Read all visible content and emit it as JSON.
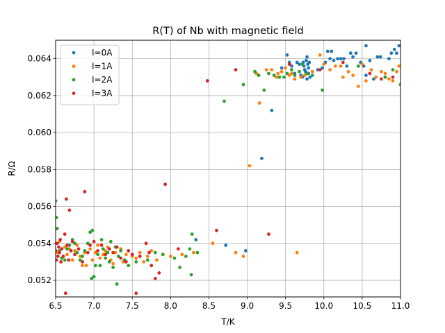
{
  "chart_data": {
    "type": "scatter",
    "title": "R(T) of Nb with magnetic field",
    "xlabel": "T/K",
    "ylabel": "R/Ω",
    "xlim": [
      6.5,
      11.0
    ],
    "ylim": [
      0.0511,
      0.065
    ],
    "xticks": [
      6.5,
      7.0,
      7.5,
      8.0,
      8.5,
      9.0,
      9.5,
      10.0,
      10.5,
      11.0
    ],
    "xtick_labels": [
      "6.5",
      "7.0",
      "7.5",
      "8.0",
      "8.5",
      "9.0",
      "9.5",
      "10.0",
      "10.5",
      "11.0"
    ],
    "yticks": [
      0.052,
      0.054,
      0.056,
      0.058,
      0.06,
      0.062,
      0.064
    ],
    "ytick_labels": [
      "0.052",
      "0.054",
      "0.056",
      "0.058",
      "0.060",
      "0.062",
      "0.064"
    ],
    "grid": true,
    "legend": "top-left",
    "series": [
      {
        "name": "I=0A",
        "color": "#1f77b4",
        "points": [
          [
            8.33,
            0.0542
          ],
          [
            8.72,
            0.0539
          ],
          [
            8.98,
            0.0536
          ],
          [
            9.19,
            0.0586
          ],
          [
            9.32,
            0.0612
          ],
          [
            9.45,
            0.0635
          ],
          [
            9.52,
            0.0642
          ],
          [
            9.55,
            0.0638
          ],
          [
            9.58,
            0.0636
          ],
          [
            9.62,
            0.0632
          ],
          [
            9.65,
            0.0638
          ],
          [
            9.68,
            0.0637
          ],
          [
            9.7,
            0.0631
          ],
          [
            9.72,
            0.063
          ],
          [
            9.73,
            0.0638
          ],
          [
            9.74,
            0.0636
          ],
          [
            9.75,
            0.0634
          ],
          [
            9.76,
            0.0633
          ],
          [
            9.77,
            0.0639
          ],
          [
            9.78,
            0.0629
          ],
          [
            9.78,
            0.0641
          ],
          [
            9.79,
            0.0637
          ],
          [
            9.8,
            0.0635
          ],
          [
            9.8,
            0.0632
          ],
          [
            9.81,
            0.0638
          ],
          [
            9.82,
            0.063
          ],
          [
            9.85,
            0.0633
          ],
          [
            9.92,
            0.0634
          ],
          [
            9.98,
            0.0635
          ],
          [
            10.02,
            0.0638
          ],
          [
            10.05,
            0.0644
          ],
          [
            10.08,
            0.064
          ],
          [
            10.1,
            0.0644
          ],
          [
            10.13,
            0.0639
          ],
          [
            10.18,
            0.064
          ],
          [
            10.22,
            0.064
          ],
          [
            10.26,
            0.064
          ],
          [
            10.3,
            0.0636
          ],
          [
            10.35,
            0.0643
          ],
          [
            10.38,
            0.0641
          ],
          [
            10.42,
            0.0643
          ],
          [
            10.48,
            0.0638
          ],
          [
            10.52,
            0.0636
          ],
          [
            10.55,
            0.0647
          ],
          [
            10.55,
            0.0631
          ],
          [
            10.6,
            0.0639
          ],
          [
            10.65,
            0.0629
          ],
          [
            10.7,
            0.0641
          ],
          [
            10.74,
            0.0641
          ],
          [
            10.8,
            0.063
          ],
          [
            10.85,
            0.064
          ],
          [
            10.88,
            0.0643
          ],
          [
            10.92,
            0.0645
          ],
          [
            10.95,
            0.0643
          ],
          [
            10.98,
            0.0647
          ]
        ]
      },
      {
        "name": "I=1A",
        "color": "#ff7f0e",
        "points": [
          [
            6.52,
            0.0535
          ],
          [
            6.55,
            0.0541
          ],
          [
            6.58,
            0.0532
          ],
          [
            6.62,
            0.0538
          ],
          [
            6.65,
            0.0534
          ],
          [
            6.68,
            0.0537
          ],
          [
            6.72,
            0.0531
          ],
          [
            6.75,
            0.0536
          ],
          [
            6.78,
            0.0539
          ],
          [
            6.82,
            0.0533
          ],
          [
            6.85,
            0.0528
          ],
          [
            6.88,
            0.0535
          ],
          [
            6.9,
            0.0528
          ],
          [
            6.95,
            0.0537
          ],
          [
            6.98,
            0.0531
          ],
          [
            7.02,
            0.0535
          ],
          [
            7.05,
            0.0539
          ],
          [
            7.08,
            0.0532
          ],
          [
            7.12,
            0.0534
          ],
          [
            7.15,
            0.0536
          ],
          [
            7.18,
            0.0538
          ],
          [
            7.22,
            0.0531
          ],
          [
            7.25,
            0.0529
          ],
          [
            7.28,
            0.0535
          ],
          [
            7.32,
            0.0533
          ],
          [
            7.35,
            0.0537
          ],
          [
            7.38,
            0.053
          ],
          [
            7.42,
            0.0534
          ],
          [
            7.45,
            0.0536
          ],
          [
            7.5,
            0.0533
          ],
          [
            7.55,
            0.0532
          ],
          [
            7.6,
            0.0535
          ],
          [
            7.65,
            0.053
          ],
          [
            7.7,
            0.0533
          ],
          [
            7.75,
            0.0536
          ],
          [
            7.82,
            0.0531
          ],
          [
            7.9,
            0.0534
          ],
          [
            8.0,
            0.0533
          ],
          [
            8.15,
            0.0534
          ],
          [
            8.3,
            0.0535
          ],
          [
            8.55,
            0.054
          ],
          [
            8.85,
            0.0535
          ],
          [
            8.95,
            0.0533
          ],
          [
            9.03,
            0.0582
          ],
          [
            9.12,
            0.0632
          ],
          [
            9.16,
            0.0616
          ],
          [
            9.25,
            0.0634
          ],
          [
            9.32,
            0.0634
          ],
          [
            9.38,
            0.063
          ],
          [
            9.4,
            0.0632
          ],
          [
            9.45,
            0.0633
          ],
          [
            9.5,
            0.0635
          ],
          [
            9.55,
            0.0631
          ],
          [
            9.58,
            0.0632
          ],
          [
            9.62,
            0.0629
          ],
          [
            9.65,
            0.0535
          ],
          [
            9.7,
            0.063
          ],
          [
            9.75,
            0.0631
          ],
          [
            9.85,
            0.0633
          ],
          [
            9.95,
            0.0642
          ],
          [
            10.0,
            0.0637
          ],
          [
            10.08,
            0.0634
          ],
          [
            10.15,
            0.0636
          ],
          [
            10.22,
            0.0636
          ],
          [
            10.25,
            0.063
          ],
          [
            10.32,
            0.0633
          ],
          [
            10.38,
            0.0631
          ],
          [
            10.45,
            0.0625
          ],
          [
            10.5,
            0.0637
          ],
          [
            10.55,
            0.0628
          ],
          [
            10.62,
            0.0634
          ],
          [
            10.68,
            0.063
          ],
          [
            10.75,
            0.0633
          ],
          [
            10.8,
            0.0632
          ],
          [
            10.85,
            0.0629
          ],
          [
            10.9,
            0.0628
          ],
          [
            10.95,
            0.0633
          ],
          [
            10.98,
            0.0636
          ]
        ]
      },
      {
        "name": "I=2A",
        "color": "#2ca02c",
        "points": [
          [
            6.5,
            0.0563
          ],
          [
            6.51,
            0.0554
          ],
          [
            6.52,
            0.0548
          ],
          [
            6.55,
            0.0536
          ],
          [
            6.58,
            0.0532
          ],
          [
            6.62,
            0.0531
          ],
          [
            6.65,
            0.0537
          ],
          [
            6.68,
            0.0539
          ],
          [
            6.72,
            0.0542
          ],
          [
            6.75,
            0.054
          ],
          [
            6.78,
            0.0535
          ],
          [
            6.82,
            0.0531
          ],
          [
            6.85,
            0.0533
          ],
          [
            6.88,
            0.0536
          ],
          [
            6.92,
            0.054
          ],
          [
            6.95,
            0.0546
          ],
          [
            6.97,
            0.0521
          ],
          [
            6.98,
            0.0547
          ],
          [
            7.0,
            0.0522
          ],
          [
            7.02,
            0.0528
          ],
          [
            7.03,
            0.051
          ],
          [
            7.05,
            0.0534
          ],
          [
            7.08,
            0.0528
          ],
          [
            7.1,
            0.0542
          ],
          [
            7.12,
            0.0537
          ],
          [
            7.15,
            0.0532
          ],
          [
            7.18,
            0.0535
          ],
          [
            7.2,
            0.053
          ],
          [
            7.22,
            0.0541
          ],
          [
            7.25,
            0.0527
          ],
          [
            7.28,
            0.0538
          ],
          [
            7.3,
            0.0518
          ],
          [
            7.32,
            0.0533
          ],
          [
            7.35,
            0.0536
          ],
          [
            7.4,
            0.0531
          ],
          [
            7.45,
            0.0528
          ],
          [
            7.5,
            0.0534
          ],
          [
            7.55,
            0.053
          ],
          [
            7.6,
            0.0533
          ],
          [
            7.7,
            0.0531
          ],
          [
            7.8,
            0.0535
          ],
          [
            7.9,
            0.0534
          ],
          [
            8.05,
            0.0532
          ],
          [
            8.12,
            0.0527
          ],
          [
            8.2,
            0.0533
          ],
          [
            8.25,
            0.0537
          ],
          [
            8.27,
            0.0523
          ],
          [
            8.28,
            0.0545
          ],
          [
            8.35,
            0.0535
          ],
          [
            8.7,
            0.0617
          ],
          [
            8.95,
            0.0626
          ],
          [
            9.1,
            0.0633
          ],
          [
            9.15,
            0.0631
          ],
          [
            9.22,
            0.0623
          ],
          [
            9.28,
            0.0632
          ],
          [
            9.35,
            0.0631
          ],
          [
            9.42,
            0.063
          ],
          [
            9.48,
            0.063
          ],
          [
            9.52,
            0.0632
          ],
          [
            9.58,
            0.0634
          ],
          [
            9.62,
            0.0631
          ],
          [
            9.68,
            0.0633
          ],
          [
            9.72,
            0.0637
          ],
          [
            9.78,
            0.0632
          ],
          [
            9.85,
            0.0631
          ],
          [
            9.98,
            0.0623
          ],
          [
            10.45,
            0.0636
          ],
          [
            10.8,
            0.063
          ],
          [
            10.9,
            0.0634
          ],
          [
            11.0,
            0.0626
          ]
        ]
      },
      {
        "name": "I=3A",
        "color": "#d62728",
        "points": [
          [
            6.5,
            0.0536
          ],
          [
            6.51,
            0.0531
          ],
          [
            6.52,
            0.054
          ],
          [
            6.53,
            0.0533
          ],
          [
            6.54,
            0.0538
          ],
          [
            6.55,
            0.0535
          ],
          [
            6.56,
            0.0542
          ],
          [
            6.57,
            0.053
          ],
          [
            6.58,
            0.0537
          ],
          [
            6.6,
            0.0533
          ],
          [
            6.62,
            0.0545
          ],
          [
            6.63,
            0.0513
          ],
          [
            6.64,
            0.0564
          ],
          [
            6.65,
            0.0539
          ],
          [
            6.67,
            0.0531
          ],
          [
            6.68,
            0.0558
          ],
          [
            6.7,
            0.0536
          ],
          [
            6.72,
            0.0541
          ],
          [
            6.75,
            0.0534
          ],
          [
            6.8,
            0.0537
          ],
          [
            6.85,
            0.053
          ],
          [
            6.88,
            0.0568
          ],
          [
            6.92,
            0.0535
          ],
          [
            6.95,
            0.0539
          ],
          [
            7.0,
            0.0541
          ],
          [
            7.05,
            0.0536
          ],
          [
            7.1,
            0.0539
          ],
          [
            7.15,
            0.0534
          ],
          [
            7.2,
            0.0537
          ],
          [
            7.25,
            0.0535
          ],
          [
            7.3,
            0.0538
          ],
          [
            7.35,
            0.0532
          ],
          [
            7.42,
            0.053
          ],
          [
            7.45,
            0.0536
          ],
          [
            7.5,
            0.0534
          ],
          [
            7.55,
            0.0513
          ],
          [
            7.6,
            0.0533
          ],
          [
            7.68,
            0.054
          ],
          [
            7.72,
            0.0535
          ],
          [
            7.75,
            0.0528
          ],
          [
            7.8,
            0.0521
          ],
          [
            7.85,
            0.0524
          ],
          [
            7.93,
            0.0572
          ],
          [
            8.1,
            0.0537
          ],
          [
            8.48,
            0.0628
          ],
          [
            8.6,
            0.0547
          ],
          [
            8.85,
            0.0634
          ],
          [
            9.28,
            0.0545
          ],
          [
            9.55,
            0.0637
          ],
          [
            9.95,
            0.0634
          ],
          [
            10.25,
            0.0638
          ],
          [
            10.6,
            0.0632
          ],
          [
            10.75,
            0.0629
          ],
          [
            10.9,
            0.063
          ]
        ]
      }
    ]
  }
}
